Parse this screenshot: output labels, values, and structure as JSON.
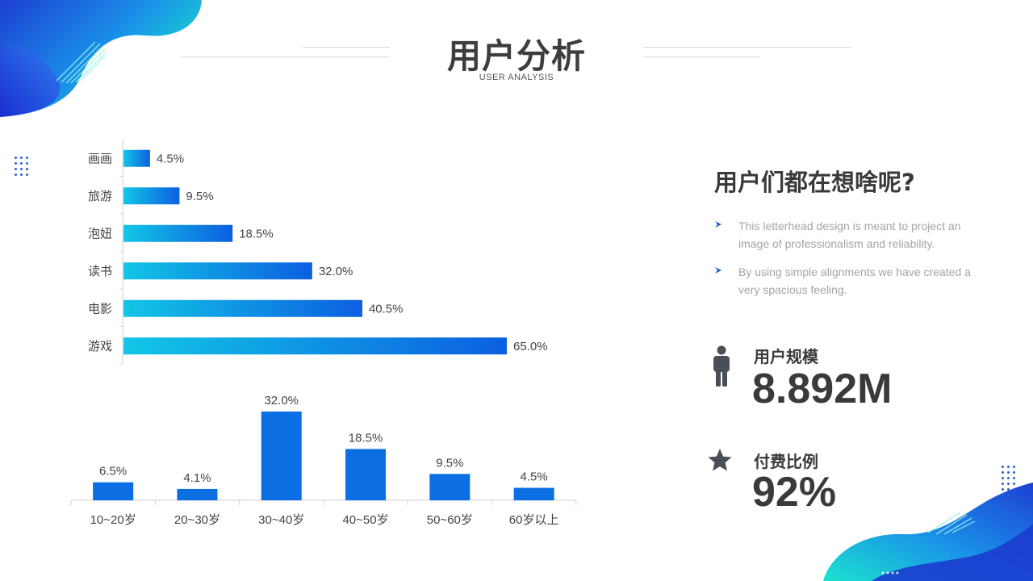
{
  "header": {
    "title": "用户分析",
    "subtitle": "USER ANALYSIS"
  },
  "colors": {
    "bar_gradient_start": "#12c6e6",
    "bar_gradient_end": "#0c5fe0",
    "column_fill": "#0b6fe3",
    "accent_blue": "#1f54d8",
    "accent_cyan": "#18e0cf",
    "text_dark": "#3a3a3a",
    "text_muted": "#a4a4a4"
  },
  "chart_data": [
    {
      "type": "bar",
      "orientation": "horizontal",
      "categories": [
        "画画",
        "旅游",
        "泡妞",
        "读书",
        "电影",
        "游戏"
      ],
      "values": [
        4.5,
        9.5,
        18.5,
        32.0,
        40.5,
        65.0
      ],
      "data_labels": [
        "4.5%",
        "9.5%",
        "18.5%",
        "32.0%",
        "40.5%",
        "65.0%"
      ],
      "xlim": [
        0,
        65
      ],
      "grid": false,
      "legend": "none"
    },
    {
      "type": "bar",
      "orientation": "vertical",
      "categories": [
        "10~20岁",
        "20~30岁",
        "30~40岁",
        "40~50岁",
        "50~60岁",
        "60岁以上"
      ],
      "values": [
        6.5,
        4.1,
        32.0,
        18.5,
        9.5,
        4.5
      ],
      "data_labels": [
        "6.5%",
        "4.1%",
        "32.0%",
        "18.5%",
        "9.5%",
        "4.5%"
      ],
      "ylim": [
        0,
        32
      ],
      "grid": false,
      "legend": "none"
    }
  ],
  "right_panel": {
    "heading": "用户们都在想啥呢?",
    "bullets": [
      "This letterhead design is meant to project an image of professionalism and reliability.",
      "By using simple alignments we have created a very spacious feeling."
    ],
    "stats": [
      {
        "icon": "person-icon",
        "label": "用户规模",
        "value": "8.892M"
      },
      {
        "icon": "star-icon",
        "label": "付费比例",
        "value": "92%"
      }
    ]
  }
}
